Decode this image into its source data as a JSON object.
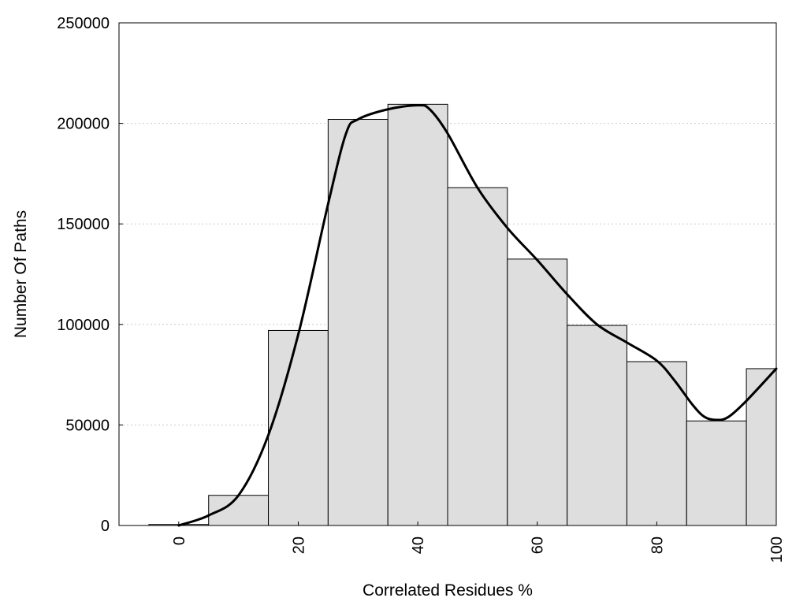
{
  "chart_data": {
    "type": "bar",
    "xlabel": "Correlated Residues %",
    "ylabel": "Number Of Paths",
    "xlim": [
      -10,
      100
    ],
    "ylim": [
      0,
      250000
    ],
    "x_ticks": [
      "0",
      "20",
      "40",
      "60",
      "80",
      "100"
    ],
    "y_ticks": [
      "0",
      "50000",
      "100000",
      "150000",
      "200000",
      "250000"
    ],
    "grid": "horizontal dotted",
    "bars": {
      "centers": [
        0,
        10,
        20,
        30,
        40,
        50,
        60,
        70,
        80,
        90,
        100
      ],
      "width": 10,
      "values": [
        500,
        15000,
        97000,
        202000,
        209500,
        168000,
        132500,
        99500,
        81500,
        52000,
        78000
      ]
    },
    "curve": {
      "x": [
        0,
        5,
        10,
        15,
        20,
        25,
        28,
        30,
        35,
        40,
        42,
        45,
        50,
        55,
        60,
        65,
        70,
        75,
        80,
        83,
        86,
        88,
        90,
        92,
        95,
        100
      ],
      "y": [
        0,
        5000,
        15000,
        45000,
        95000,
        160000,
        195000,
        202000,
        207000,
        209000,
        207000,
        195000,
        168000,
        148000,
        132000,
        115000,
        100000,
        91000,
        82000,
        72000,
        60000,
        54000,
        52500,
        54000,
        62000,
        78000
      ]
    },
    "colors": {
      "bar_fill": "#dedede",
      "bar_stroke": "#000000",
      "curve": "#000000",
      "grid": "#cccccc"
    }
  }
}
